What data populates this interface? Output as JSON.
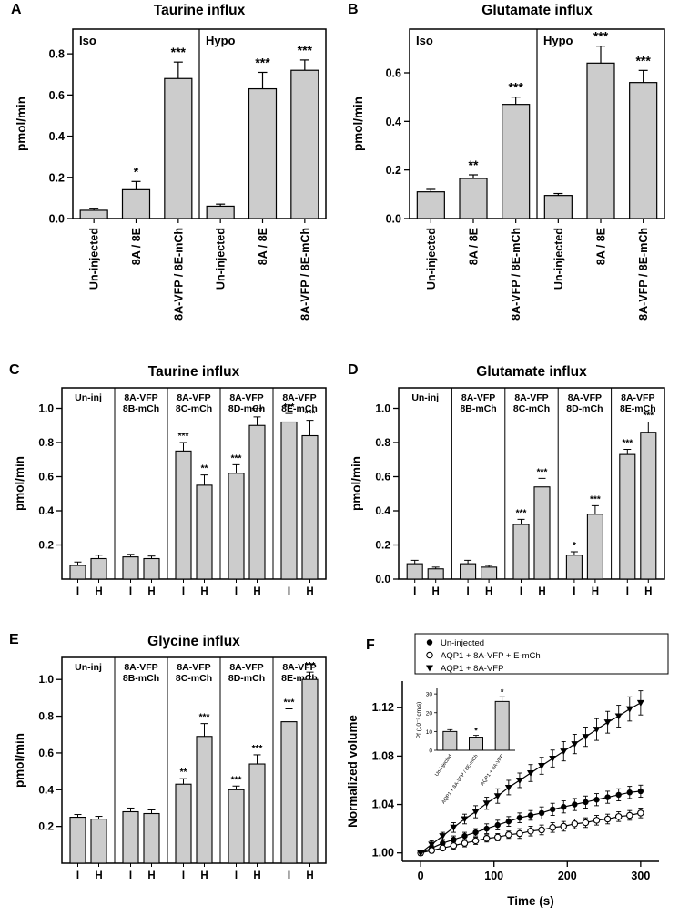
{
  "figure": {
    "background": "#ffffff",
    "bar_fill": "#cccccc",
    "bar_edge": "#000000",
    "axis_color": "#000000"
  },
  "chart_data": [
    {
      "id": "A",
      "panel_label": "A",
      "type": "bar",
      "title": "Taurine influx",
      "ylabel": "pmol/min",
      "ylim": [
        0,
        0.92
      ],
      "yticks": [
        0.0,
        0.2,
        0.4,
        0.6,
        0.8
      ],
      "ytick_decimals": 1,
      "sections": [
        {
          "label": "Iso",
          "bars": [
            {
              "label": "Un-injected",
              "value": 0.04,
              "err": 0.01,
              "sig": ""
            },
            {
              "label": "8A / 8E",
              "value": 0.14,
              "err": 0.04,
              "sig": "*"
            },
            {
              "label": "8A-VFP / 8E-mCh",
              "value": 0.68,
              "err": 0.08,
              "sig": "***"
            }
          ]
        },
        {
          "label": "Hypo",
          "bars": [
            {
              "label": "Un-injected",
              "value": 0.06,
              "err": 0.01,
              "sig": ""
            },
            {
              "label": "8A / 8E",
              "value": 0.63,
              "err": 0.08,
              "sig": "***"
            },
            {
              "label": "8A-VFP / 8E-mCh",
              "value": 0.72,
              "err": 0.05,
              "sig": "***"
            }
          ]
        }
      ]
    },
    {
      "id": "B",
      "panel_label": "B",
      "type": "bar",
      "title": "Glutamate influx",
      "ylabel": "pmol/min",
      "ylim": [
        0,
        0.78
      ],
      "yticks": [
        0.0,
        0.2,
        0.4,
        0.6
      ],
      "ytick_decimals": 1,
      "sections": [
        {
          "label": "Iso",
          "bars": [
            {
              "label": "Un-injected",
              "value": 0.11,
              "err": 0.01,
              "sig": ""
            },
            {
              "label": "8A / 8E",
              "value": 0.165,
              "err": 0.015,
              "sig": "**"
            },
            {
              "label": "8A-VFP / 8E-mCh",
              "value": 0.47,
              "err": 0.03,
              "sig": "***"
            }
          ]
        },
        {
          "label": "Hypo",
          "bars": [
            {
              "label": "Un-injected",
              "value": 0.095,
              "err": 0.008,
              "sig": ""
            },
            {
              "label": "8A / 8E",
              "value": 0.64,
              "err": 0.07,
              "sig": "***"
            },
            {
              "label": "8A-VFP / 8E-mCh",
              "value": 0.56,
              "err": 0.05,
              "sig": "***"
            }
          ]
        }
      ]
    },
    {
      "id": "C",
      "panel_label": "C",
      "type": "paired_bar",
      "title": "Taurine influx",
      "ylabel": "pmol/min",
      "ylim": [
        0,
        1.12
      ],
      "yticks": [
        0.2,
        0.4,
        0.6,
        0.8,
        1.0
      ],
      "ytick_decimals": 1,
      "pair_labels": [
        "I",
        "H"
      ],
      "groups": [
        {
          "label_lines": [
            "Un-inj"
          ],
          "bars": [
            {
              "value": 0.08,
              "err": 0.02,
              "sig": ""
            },
            {
              "value": 0.12,
              "err": 0.02,
              "sig": ""
            }
          ]
        },
        {
          "label_lines": [
            "8A-VFP",
            "8B-mCh"
          ],
          "bars": [
            {
              "value": 0.13,
              "err": 0.015,
              "sig": ""
            },
            {
              "value": 0.12,
              "err": 0.015,
              "sig": ""
            }
          ]
        },
        {
          "label_lines": [
            "8A-VFP",
            "8C-mCh"
          ],
          "bars": [
            {
              "value": 0.75,
              "err": 0.05,
              "sig": "***"
            },
            {
              "value": 0.55,
              "err": 0.06,
              "sig": "**"
            }
          ]
        },
        {
          "label_lines": [
            "8A-VFP",
            "8D-mCh"
          ],
          "bars": [
            {
              "value": 0.62,
              "err": 0.05,
              "sig": "***"
            },
            {
              "value": 0.9,
              "err": 0.05,
              "sig": "***"
            }
          ]
        },
        {
          "label_lines": [
            "8A-VFP",
            "8E-mCh"
          ],
          "bars": [
            {
              "value": 0.92,
              "err": 0.05,
              "sig": "***"
            },
            {
              "value": 0.84,
              "err": 0.09,
              "sig": "***"
            }
          ]
        }
      ]
    },
    {
      "id": "D",
      "panel_label": "D",
      "type": "paired_bar",
      "title": "Glutamate influx",
      "ylabel": "pmol/min",
      "ylim": [
        0,
        1.12
      ],
      "yticks": [
        0.0,
        0.2,
        0.4,
        0.6,
        0.8,
        1.0
      ],
      "ytick_decimals": 1,
      "pair_labels": [
        "I",
        "H"
      ],
      "groups": [
        {
          "label_lines": [
            "Un-inj"
          ],
          "bars": [
            {
              "value": 0.09,
              "err": 0.02,
              "sig": ""
            },
            {
              "value": 0.06,
              "err": 0.01,
              "sig": ""
            }
          ]
        },
        {
          "label_lines": [
            "8A-VFP",
            "8B-mCh"
          ],
          "bars": [
            {
              "value": 0.09,
              "err": 0.02,
              "sig": ""
            },
            {
              "value": 0.07,
              "err": 0.01,
              "sig": ""
            }
          ]
        },
        {
          "label_lines": [
            "8A-VFP",
            "8C-mCh"
          ],
          "bars": [
            {
              "value": 0.32,
              "err": 0.03,
              "sig": "***"
            },
            {
              "value": 0.54,
              "err": 0.05,
              "sig": "***"
            }
          ]
        },
        {
          "label_lines": [
            "8A-VFP",
            "8D-mCh"
          ],
          "bars": [
            {
              "value": 0.14,
              "err": 0.02,
              "sig": "*"
            },
            {
              "value": 0.38,
              "err": 0.05,
              "sig": "***"
            }
          ]
        },
        {
          "label_lines": [
            "8A-VFP",
            "8E-mCh"
          ],
          "bars": [
            {
              "value": 0.73,
              "err": 0.03,
              "sig": "***"
            },
            {
              "value": 0.86,
              "err": 0.06,
              "sig": "***"
            }
          ]
        }
      ]
    },
    {
      "id": "E",
      "panel_label": "E",
      "type": "paired_bar",
      "title": "Glycine influx",
      "ylabel": "pmol/min",
      "ylim": [
        0,
        1.12
      ],
      "yticks": [
        0.2,
        0.4,
        0.6,
        0.8,
        1.0
      ],
      "ytick_decimals": 1,
      "pair_labels": [
        "I",
        "H"
      ],
      "groups": [
        {
          "label_lines": [
            "Un-inj"
          ],
          "bars": [
            {
              "value": 0.25,
              "err": 0.015,
              "sig": ""
            },
            {
              "value": 0.24,
              "err": 0.015,
              "sig": ""
            }
          ]
        },
        {
          "label_lines": [
            "8A-VFP",
            "8B-mCh"
          ],
          "bars": [
            {
              "value": 0.28,
              "err": 0.02,
              "sig": ""
            },
            {
              "value": 0.27,
              "err": 0.02,
              "sig": ""
            }
          ]
        },
        {
          "label_lines": [
            "8A-VFP",
            "8C-mCh"
          ],
          "bars": [
            {
              "value": 0.43,
              "err": 0.03,
              "sig": "**"
            },
            {
              "value": 0.69,
              "err": 0.07,
              "sig": "***"
            }
          ]
        },
        {
          "label_lines": [
            "8A-VFP",
            "8D-mCh"
          ],
          "bars": [
            {
              "value": 0.4,
              "err": 0.02,
              "sig": "***"
            },
            {
              "value": 0.54,
              "err": 0.05,
              "sig": "***"
            }
          ]
        },
        {
          "label_lines": [
            "8A-VFP",
            "8E-mCh"
          ],
          "bars": [
            {
              "value": 0.77,
              "err": 0.07,
              "sig": "***"
            },
            {
              "value": 1.0,
              "err": 0.04,
              "sig": "***"
            }
          ]
        }
      ]
    },
    {
      "id": "F",
      "panel_label": "F",
      "type": "line",
      "xlabel": "Time (s)",
      "ylabel": "Normalized volume",
      "xlim": [
        -25,
        325
      ],
      "xticks": [
        0,
        100,
        200,
        300
      ],
      "ylim": [
        0.993,
        1.142
      ],
      "yticks": [
        1.0,
        1.04,
        1.08,
        1.12
      ],
      "x": [
        0,
        15,
        30,
        45,
        60,
        75,
        90,
        105,
        120,
        135,
        150,
        165,
        180,
        195,
        210,
        225,
        240,
        255,
        270,
        285,
        300
      ],
      "series": [
        {
          "name": "Un-injected",
          "marker": "circle-filled",
          "values": [
            1.0,
            1.004,
            1.008,
            1.011,
            1.014,
            1.017,
            1.02,
            1.023,
            1.026,
            1.029,
            1.031,
            1.033,
            1.036,
            1.038,
            1.04,
            1.042,
            1.044,
            1.046,
            1.048,
            1.05,
            1.051
          ],
          "errors": [
            0.002,
            0.002,
            0.003,
            0.003,
            0.003,
            0.003,
            0.004,
            0.004,
            0.004,
            0.004,
            0.004,
            0.005,
            0.005,
            0.005,
            0.005,
            0.005,
            0.005,
            0.005,
            0.005,
            0.005,
            0.005
          ]
        },
        {
          "name": "AQP1 + 8A-VFP + E-mCh",
          "marker": "circle-open",
          "values": [
            1.0,
            1.002,
            1.004,
            1.006,
            1.008,
            1.01,
            1.012,
            1.013,
            1.015,
            1.016,
            1.018,
            1.019,
            1.021,
            1.022,
            1.024,
            1.025,
            1.027,
            1.028,
            1.03,
            1.031,
            1.033
          ],
          "errors": [
            0.002,
            0.002,
            0.002,
            0.003,
            0.003,
            0.003,
            0.003,
            0.003,
            0.003,
            0.004,
            0.004,
            0.004,
            0.004,
            0.004,
            0.004,
            0.004,
            0.004,
            0.004,
            0.004,
            0.004,
            0.004
          ]
        },
        {
          "name": "AQP1 + 8A-VFP",
          "marker": "triangle-filled",
          "values": [
            1.0,
            1.007,
            1.014,
            1.021,
            1.028,
            1.034,
            1.041,
            1.047,
            1.054,
            1.06,
            1.066,
            1.072,
            1.078,
            1.084,
            1.09,
            1.096,
            1.102,
            1.108,
            1.113,
            1.119,
            1.124
          ],
          "errors": [
            0.002,
            0.003,
            0.003,
            0.004,
            0.004,
            0.005,
            0.005,
            0.006,
            0.006,
            0.006,
            0.007,
            0.007,
            0.007,
            0.008,
            0.008,
            0.008,
            0.009,
            0.009,
            0.009,
            0.01,
            0.01
          ]
        }
      ],
      "inset": {
        "ylabel": "Pf (10⁻³ cm/s)",
        "ylim": [
          0,
          32
        ],
        "yticks": [
          0,
          10,
          20,
          30
        ],
        "categories": [
          "Un-injected",
          "AQP1 + 8A-VFP / 8E-mCh",
          "AQP1 + 8A-VFP"
        ],
        "values": [
          10,
          7,
          26
        ],
        "errors": [
          1,
          1,
          2.5
        ],
        "sig": [
          "",
          "*",
          "*"
        ]
      }
    }
  ]
}
